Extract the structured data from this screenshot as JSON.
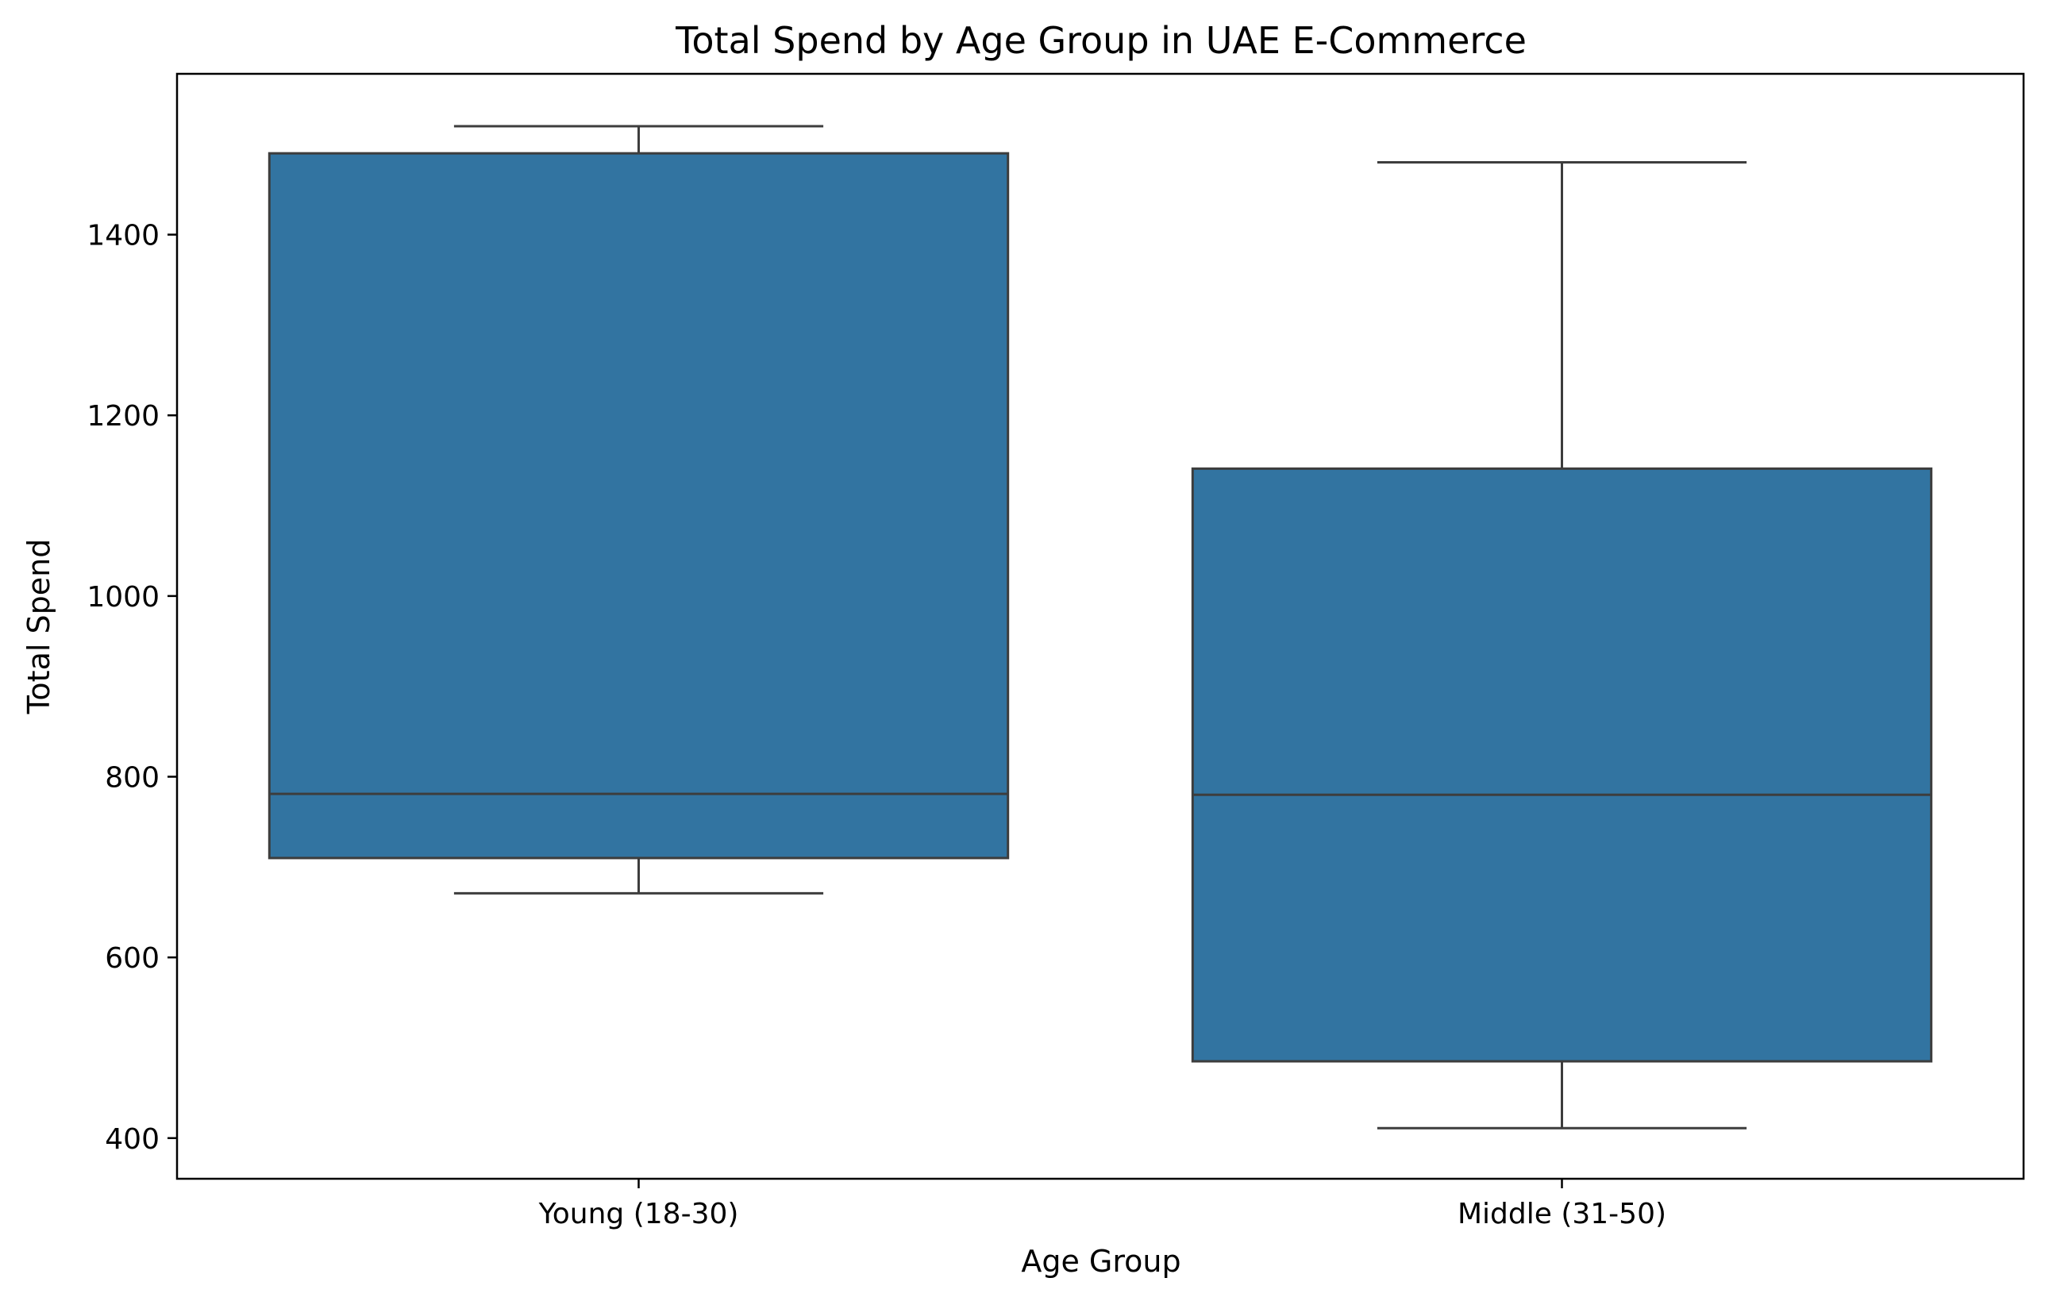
{
  "chart_data": {
    "type": "box",
    "title": "Total Spend by Age Group in UAE E-Commerce",
    "xlabel": "Age Group",
    "ylabel": "Total Spend",
    "ylim": [
      355,
      1578
    ],
    "yticks": [
      400,
      600,
      800,
      1000,
      1200,
      1400
    ],
    "grid": false,
    "box_color": "#3274a1",
    "line_color": "#3d3d3d",
    "categories": [
      "Young (18-30)",
      "Middle (31-50)"
    ],
    "boxes": [
      {
        "category": "Young (18-30)",
        "whisker_low": 671,
        "q1": 710,
        "median": 781,
        "q3": 1490,
        "whisker_high": 1520
      },
      {
        "category": "Middle (31-50)",
        "whisker_low": 411,
        "q1": 485,
        "median": 780,
        "q3": 1141,
        "whisker_high": 1480
      }
    ]
  }
}
